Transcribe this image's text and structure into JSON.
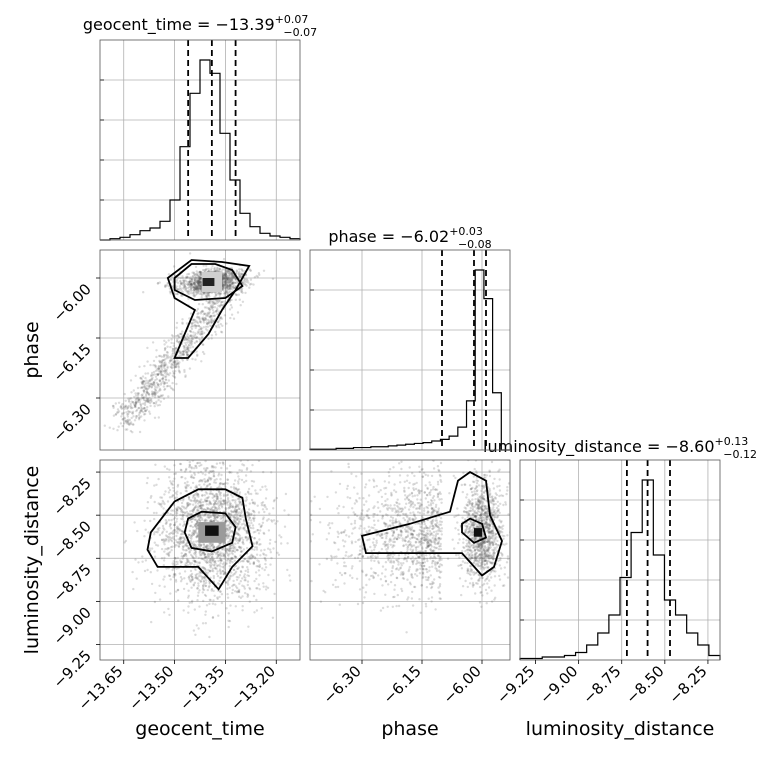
{
  "chart_data": {
    "type": "corner",
    "parameters": [
      "geocent_time",
      "phase",
      "luminosity_distance"
    ],
    "titles": [
      {
        "param": "geocent_time",
        "prefix": "geocent_time = ",
        "median": "−13.39",
        "upper": "+0.07",
        "lower": "−0.07"
      },
      {
        "param": "phase",
        "prefix": "phase = ",
        "median": "−6.02",
        "upper": "+0.03",
        "lower": "−0.08"
      },
      {
        "param": "luminosity_distance",
        "prefix": "luminosity_distance = ",
        "median": "−8.60",
        "upper": "+0.13",
        "lower": "−0.12"
      }
    ],
    "ranges": {
      "geocent_time": [
        -13.72,
        -13.13
      ],
      "phase": [
        -6.43,
        -5.93
      ],
      "luminosity_distance": [
        -9.34,
        -8.18
      ]
    },
    "ticks": {
      "geocent_time": {
        "values": [
          -13.65,
          -13.5,
          -13.35,
          -13.2
        ],
        "labels": [
          "−13.65",
          "−13.50",
          "−13.35",
          "−13.20"
        ]
      },
      "phase": {
        "values": [
          -6.3,
          -6.15,
          -6.0
        ],
        "labels": [
          "−6.30",
          "−6.15",
          "−6.00"
        ]
      },
      "luminosity_distance": {
        "values": [
          -9.25,
          -9.0,
          -8.75,
          -8.5,
          -8.25
        ],
        "labels": [
          "−9.25",
          "−9.00",
          "−8.75",
          "−8.50",
          "−8.25"
        ]
      }
    },
    "axis_labels": {
      "x": [
        "geocent_time",
        "phase",
        "luminosity_distance"
      ],
      "y": [
        "phase",
        "luminosity_distance"
      ]
    },
    "quantiles": {
      "geocent_time": [
        -13.46,
        -13.39,
        -13.32
      ],
      "phase": [
        -6.1,
        -6.02,
        -5.99
      ],
      "luminosity_distance": [
        -8.72,
        -8.6,
        -8.47
      ]
    },
    "histograms": {
      "geocent_time": {
        "range": [
          -13.72,
          -13.13
        ],
        "counts": [
          0,
          1,
          2,
          4,
          7,
          9,
          14,
          30,
          70,
          110,
          135,
          125,
          80,
          45,
          20,
          10,
          5,
          3,
          2,
          1
        ]
      },
      "phase": {
        "range": [
          -6.43,
          -5.93
        ],
        "counts": [
          1,
          1,
          1,
          2,
          2,
          3,
          3,
          4,
          4,
          5,
          6,
          7,
          8,
          9,
          11,
          13,
          17,
          28,
          60,
          220,
          185,
          70,
          0
        ]
      },
      "luminosity_distance": {
        "range": [
          -9.34,
          -8.18
        ],
        "counts": [
          1,
          1,
          2,
          2,
          3,
          5,
          10,
          18,
          30,
          55,
          85,
          120,
          70,
          40,
          30,
          18,
          10,
          3
        ]
      }
    },
    "grid": true,
    "grid_x": {
      "geocent_time": [
        -13.65,
        -13.5,
        -13.35,
        -13.2
      ],
      "phase": [
        -6.3,
        -6.15,
        -6.0
      ],
      "luminosity_distance": [
        -9.25,
        -9.0,
        -8.75,
        -8.5,
        -8.25
      ]
    },
    "hist_grid_fracs": [
      0.2,
      0.4,
      0.6,
      0.8
    ],
    "samples_2d": {
      "phase_vs_geocent_time": {
        "center": [
          -13.39,
          -6.02
        ],
        "description": "banana-shaped, tail to lower-left"
      },
      "luminosity_distance_vs_geocent_time": {
        "center": [
          -13.39,
          -8.6
        ]
      },
      "luminosity_distance_vs_phase": {
        "center": [
          -6.02,
          -8.6
        ]
      }
    }
  }
}
